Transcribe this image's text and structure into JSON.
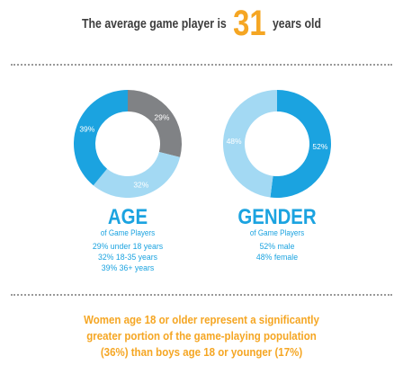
{
  "headline": {
    "prefix": "The average game player is",
    "highlight": "31",
    "suffix": "years old"
  },
  "colors": {
    "blue": "#1ba3e0",
    "light_blue": "#a3d9f3",
    "gray": "#808285",
    "orange": "#f5a623",
    "text_dark": "#3d3d3d"
  },
  "chart_data": [
    {
      "type": "pie",
      "title": "AGE",
      "subtitle": "of Game Players",
      "slices": [
        {
          "label": "under 18 years",
          "value": 29,
          "display": "29%",
          "color": "#808285"
        },
        {
          "label": "18-35 years",
          "value": 32,
          "display": "32%",
          "color": "#a3d9f3"
        },
        {
          "label": "36+ years",
          "value": 39,
          "display": "39%",
          "color": "#1ba3e0"
        }
      ],
      "details": [
        "29% under 18 years",
        "32% 18-35 years",
        "39% 36+ years"
      ]
    },
    {
      "type": "pie",
      "title": "GENDER",
      "subtitle": "of Game Players",
      "slices": [
        {
          "label": "male",
          "value": 52,
          "display": "52%",
          "color": "#1ba3e0"
        },
        {
          "label": "female",
          "value": 48,
          "display": "48%",
          "color": "#a3d9f3"
        }
      ],
      "details": [
        "52% male",
        "48% female"
      ]
    }
  ],
  "statement": [
    "Women age 18 or older represent a significantly",
    "greater portion of the game-playing population",
    "(36%) than boys age 18 or younger (17%)"
  ]
}
